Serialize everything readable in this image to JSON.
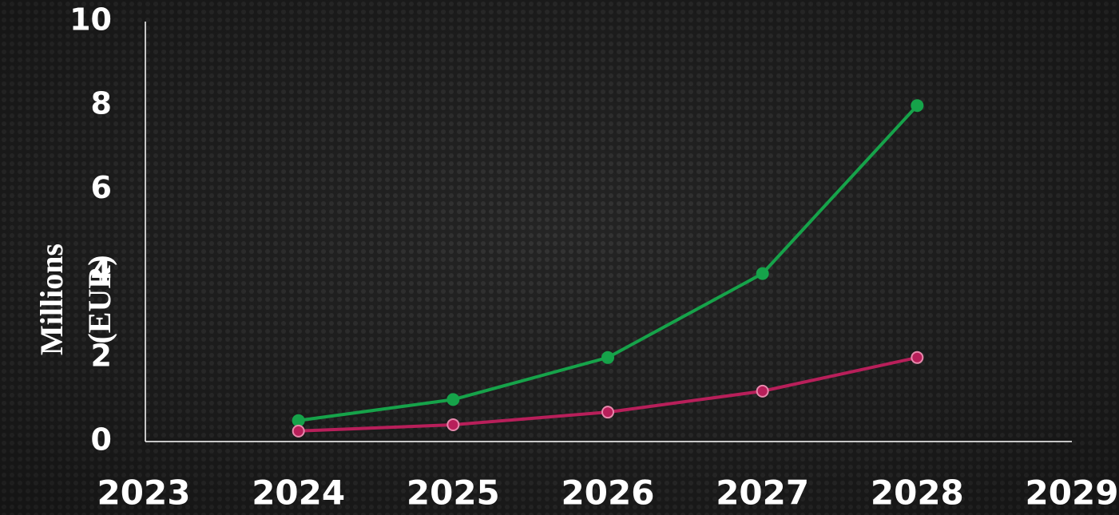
{
  "chart_data": {
    "type": "line",
    "y_label": "Millions (EUR)",
    "x": [
      2024,
      2025,
      2026,
      2027,
      2028
    ],
    "series": [
      {
        "color": "#16a34a",
        "values": [
          0.5,
          1.0,
          2.0,
          4.0,
          8.0
        ]
      },
      {
        "color": "#b81f5a",
        "values": [
          0.25,
          0.4,
          0.7,
          1.2,
          2.0
        ]
      }
    ],
    "xlim": [
      2023,
      2029
    ],
    "xticks": [
      2023,
      2024,
      2025,
      2026,
      2027,
      2028,
      2029
    ],
    "ylim": [
      0,
      10
    ],
    "yticks": [
      0,
      2,
      4,
      6,
      8,
      10
    ]
  }
}
